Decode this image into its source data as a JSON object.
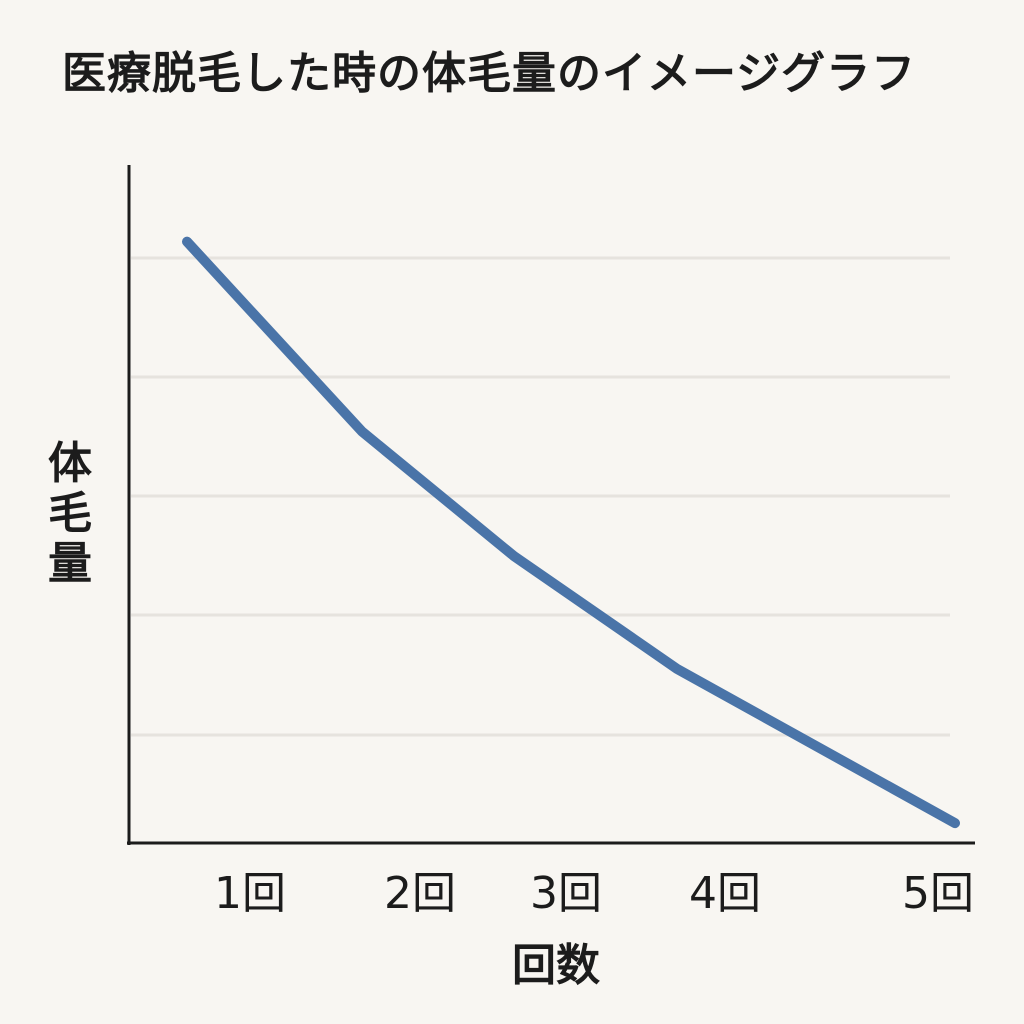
{
  "chart_data": {
    "type": "line",
    "title": "医療脱毛した時の体毛量のイメージグラフ",
    "xlabel": "回数",
    "ylabel": "体毛量",
    "categories": [
      "1回",
      "2回",
      "3回",
      "4回",
      "5回"
    ],
    "x": [
      1,
      2,
      3,
      4,
      5
    ],
    "series": [
      {
        "values": [
          100,
          68,
          47,
          28,
          2
        ]
      }
    ],
    "ylim": [
      0,
      105
    ],
    "y_tick_labels_shown": false,
    "grid": "horizontal",
    "legend": "none",
    "colors": {
      "line": "#4a74a8",
      "axis": "#1c1c1c",
      "grid": "#e6e3de",
      "background": "#f8f6f2"
    }
  }
}
